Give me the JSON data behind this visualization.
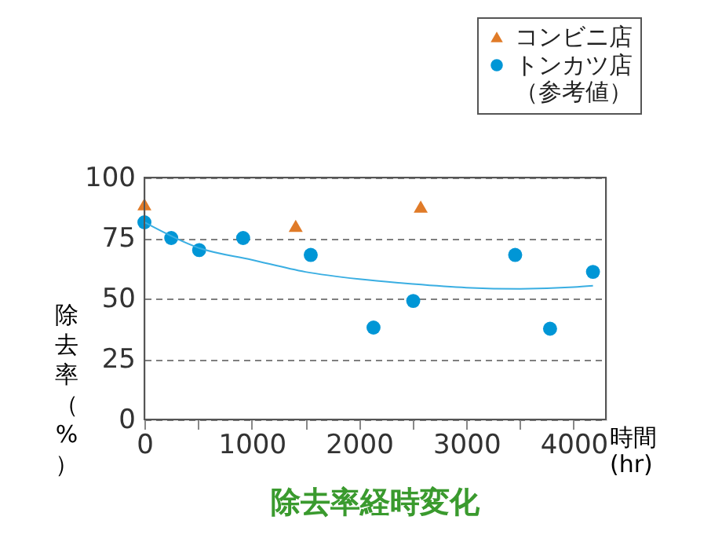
{
  "chart_data": {
    "type": "scatter",
    "title": "除去率経時変化",
    "xlabel": "時間\n(hr)",
    "ylabel": "除去率（%）",
    "xlim": [
      0,
      4300
    ],
    "xticks": [
      0,
      {
        "value": 500,
        "label": null
      },
      1000,
      {
        "value": 1500,
        "label": null
      },
      2000,
      {
        "value": 2500,
        "label": null
      },
      3000,
      {
        "value": 3500,
        "label": null
      },
      4000
    ],
    "ylim": [
      0,
      100
    ],
    "yticks": [
      0,
      25,
      50,
      75,
      100
    ],
    "grid": "y",
    "legend": "top right",
    "series": [
      {
        "name": "コンビニ店",
        "marker": "triangle",
        "color": "#e07b28",
        "x": [
          0,
          1410,
          2575
        ],
        "values": [
          89,
          80,
          88
        ]
      },
      {
        "name": "トンカツ店（参考値）",
        "marker": "circle",
        "color": "#0096d6",
        "x": [
          0,
          250,
          510,
          920,
          1550,
          2135,
          2505,
          3455,
          3780,
          4180
        ],
        "values": [
          81.5,
          75,
          70,
          75,
          68,
          38,
          49,
          68,
          37.5,
          61
        ]
      },
      {
        "type": "line",
        "marker": "none",
        "line_style": "solid",
        "color": "#3aaee2",
        "x": [
          0,
          500,
          1000,
          1500,
          2000,
          2500,
          3000,
          3500,
          4000,
          4180
        ],
        "values": [
          81.5,
          71,
          66,
          61,
          58,
          56,
          54.5,
          54,
          54.7,
          55.3
        ]
      }
    ]
  }
}
